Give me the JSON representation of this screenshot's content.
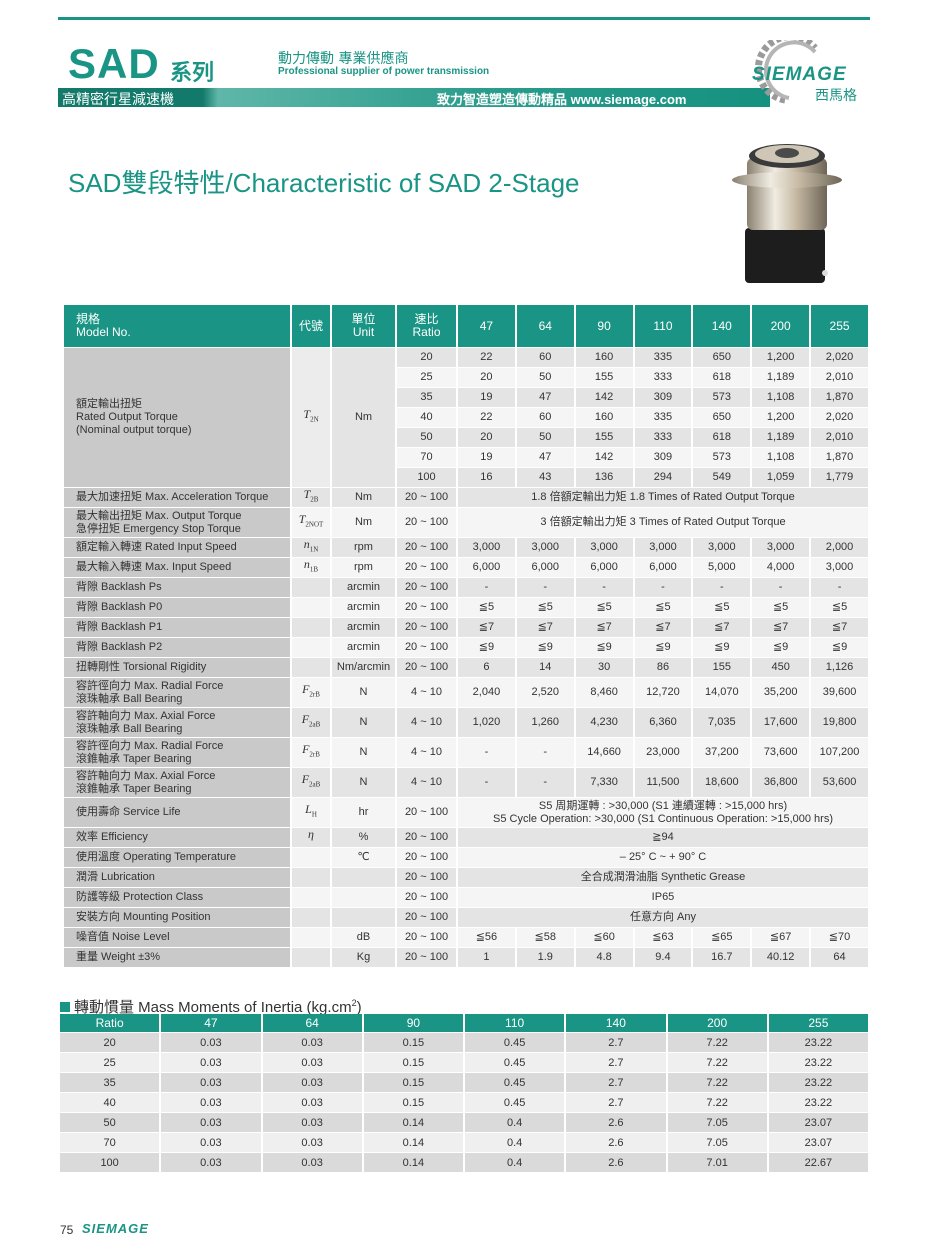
{
  "header": {
    "brand": "SAD",
    "series": "系列",
    "tagline_zh": "動力傳動 專業供應商",
    "tagline_en": "Professional supplier of power transmission",
    "band_left": "高精密行星減速機",
    "band_right": "致力智造塑造傳動精品  www.siemage.com",
    "logo_text": "SIEMAGE",
    "logo_zh": "西馬格",
    "accent_color": "#1a9585"
  },
  "title": "SAD雙段特性/Characteristic of SAD 2-Stage",
  "main_table": {
    "head": {
      "model_zh": "規格",
      "model_en": "Model No.",
      "code": "代號",
      "unit_zh": "單位",
      "unit_en": "Unit",
      "ratio_zh": "速比",
      "ratio_en": "Ratio",
      "models": [
        "47",
        "64",
        "90",
        "110",
        "140",
        "200",
        "255"
      ]
    },
    "rated_torque": {
      "label_zh": "額定輸出扭矩",
      "label_en": "Rated Output Torque",
      "label_note": "(Nominal output torque)",
      "sym": {
        "main": "T",
        "sub": "2N"
      },
      "unit": "Nm",
      "rows": [
        {
          "ratio": "20",
          "values": [
            "22",
            "60",
            "160",
            "335",
            "650",
            "1,200",
            "2,020"
          ]
        },
        {
          "ratio": "25",
          "values": [
            "20",
            "50",
            "155",
            "333",
            "618",
            "1,189",
            "2,010"
          ]
        },
        {
          "ratio": "35",
          "values": [
            "19",
            "47",
            "142",
            "309",
            "573",
            "1,108",
            "1,870"
          ]
        },
        {
          "ratio": "40",
          "values": [
            "22",
            "60",
            "160",
            "335",
            "650",
            "1,200",
            "2,020"
          ]
        },
        {
          "ratio": "50",
          "values": [
            "20",
            "50",
            "155",
            "333",
            "618",
            "1,189",
            "2,010"
          ]
        },
        {
          "ratio": "70",
          "values": [
            "19",
            "47",
            "142",
            "309",
            "573",
            "1,108",
            "1,870"
          ]
        },
        {
          "ratio": "100",
          "values": [
            "16",
            "43",
            "136",
            "294",
            "549",
            "1,059",
            "1,779"
          ]
        }
      ]
    },
    "rows": [
      {
        "label": "最大加速扭矩 Max. Acceleration Torque",
        "sym": {
          "main": "T",
          "sub": "2B"
        },
        "unit": "Nm",
        "ratio": "20 ~ 100",
        "span": "1.8 倍額定輸出力矩  1.8 Times of Rated Output Torque"
      },
      {
        "label": "最大輸出扭矩  Max. Output Torque",
        "label2": "急停扭矩  Emergency Stop Torque",
        "sym": {
          "main": "T",
          "sub": "2NOT"
        },
        "unit": "Nm",
        "ratio": "20 ~ 100",
        "span": "3 倍額定輸出力矩  3 Times of Rated Output Torque"
      },
      {
        "label": "額定輸入轉速  Rated Input Speed",
        "sym": {
          "main": "n",
          "sub": "1N"
        },
        "unit": "rpm",
        "ratio": "20 ~ 100",
        "values": [
          "3,000",
          "3,000",
          "3,000",
          "3,000",
          "3,000",
          "3,000",
          "2,000"
        ]
      },
      {
        "label": "最大輸入轉速  Max. Input Speed",
        "sym": {
          "main": "n",
          "sub": "1B"
        },
        "unit": "rpm",
        "ratio": "20 ~ 100",
        "values": [
          "6,000",
          "6,000",
          "6,000",
          "6,000",
          "5,000",
          "4,000",
          "3,000"
        ]
      },
      {
        "label": "背隙  Backlash Ps",
        "unit": "arcmin",
        "ratio": "20 ~ 100",
        "values": [
          "-",
          "-",
          "-",
          "-",
          "-",
          "-",
          "-"
        ]
      },
      {
        "label": "背隙  Backlash P0",
        "unit": "arcmin",
        "ratio": "20 ~ 100",
        "values": [
          "≦5",
          "≦5",
          "≦5",
          "≦5",
          "≦5",
          "≦5",
          "≦5"
        ]
      },
      {
        "label": "背隙  Backlash P1",
        "unit": "arcmin",
        "ratio": "20 ~ 100",
        "values": [
          "≦7",
          "≦7",
          "≦7",
          "≦7",
          "≦7",
          "≦7",
          "≦7"
        ]
      },
      {
        "label": "背隙  Backlash P2",
        "unit": "arcmin",
        "ratio": "20 ~ 100",
        "values": [
          "≦9",
          "≦9",
          "≦9",
          "≦9",
          "≦9",
          "≦9",
          "≦9"
        ]
      },
      {
        "label": "扭轉剛性  Torsional Rigidity",
        "unit": "Nm/arcmin",
        "ratio": "20 ~ 100",
        "values": [
          "6",
          "14",
          "30",
          "86",
          "155",
          "450",
          "1,126"
        ]
      },
      {
        "label": "容許徑向力  Max. Radial Force",
        "label2": "滾珠軸承  Ball Bearing",
        "sym": {
          "main": "F",
          "sub": "2rB"
        },
        "unit": "N",
        "ratio": "4 ~ 10",
        "values": [
          "2,040",
          "2,520",
          "8,460",
          "12,720",
          "14,070",
          "35,200",
          "39,600"
        ]
      },
      {
        "label": "容許軸向力  Max. Axial Force",
        "label2": "滾珠軸承  Ball Bearing",
        "sym": {
          "main": "F",
          "sub": "2aB"
        },
        "unit": "N",
        "ratio": "4 ~ 10",
        "values": [
          "1,020",
          "1,260",
          "4,230",
          "6,360",
          "7,035",
          "17,600",
          "19,800"
        ]
      },
      {
        "label": "容許徑向力  Max. Radial Force",
        "label2": "滾錐軸承  Taper Bearing",
        "sym": {
          "main": "F",
          "sub": "2rB"
        },
        "unit": "N",
        "ratio": "4 ~ 10",
        "values": [
          "-",
          "-",
          "14,660",
          "23,000",
          "37,200",
          "73,600",
          "107,200"
        ]
      },
      {
        "label": "容許軸向力  Max. Axial Force",
        "label2": "滾錐軸承  Taper Bearing",
        "sym": {
          "main": "F",
          "sub": "2aB"
        },
        "unit": "N",
        "ratio": "4 ~ 10",
        "values": [
          "-",
          "-",
          "7,330",
          "11,500",
          "18,600",
          "36,800",
          "53,600"
        ]
      },
      {
        "label": "使用壽命  Service Life",
        "sym": {
          "main": "L",
          "sub": "H"
        },
        "unit": "hr",
        "ratio": "20 ~ 100",
        "span": "S5 周期運轉 : >30,000 (S1 連續運轉 : >15,000 hrs)",
        "span2": "S5 Cycle Operation: >30,000 (S1 Continuous Operation: >15,000 hrs)"
      },
      {
        "label": "效率  Efficiency",
        "sym": {
          "main": "η",
          "sub": ""
        },
        "unit": "%",
        "ratio": "20 ~ 100",
        "span": "≧94"
      },
      {
        "label": "使用溫度  Operating Temperature",
        "unit": "℃",
        "ratio": "20 ~ 100",
        "span": "– 25° C  ~  + 90° C"
      },
      {
        "label": "潤滑  Lubrication",
        "unit": "",
        "ratio": "20 ~ 100",
        "span": "全合成潤滑油脂  Synthetic Grease"
      },
      {
        "label": "防護等級  Protection Class",
        "unit": "",
        "ratio": "20 ~ 100",
        "span": "IP65"
      },
      {
        "label": "安裝方向  Mounting Position",
        "unit": "",
        "ratio": "20 ~ 100",
        "span": "任意方向  Any"
      },
      {
        "label": "噪音值  Noise Level",
        "unit": "dB",
        "ratio": "20 ~ 100",
        "values": [
          "≦56",
          "≦58",
          "≦60",
          "≦63",
          "≦65",
          "≦67",
          "≦70"
        ]
      },
      {
        "label": "重量  Weight  ±3%",
        "unit": "Kg",
        "ratio": "20 ~ 100",
        "values": [
          "1",
          "1.9",
          "4.8",
          "9.4",
          "16.7",
          "40.12",
          "64"
        ]
      }
    ]
  },
  "inertia": {
    "title": "轉動慣量 Mass Moments of Inertia (kg.cm",
    "title_sup": "2",
    "title_end": ")",
    "headers": [
      "Ratio",
      "47",
      "64",
      "90",
      "110",
      "140",
      "200",
      "255"
    ],
    "rows": [
      [
        "20",
        "0.03",
        "0.03",
        "0.15",
        "0.45",
        "2.7",
        "7.22",
        "23.22"
      ],
      [
        "25",
        "0.03",
        "0.03",
        "0.15",
        "0.45",
        "2.7",
        "7.22",
        "23.22"
      ],
      [
        "35",
        "0.03",
        "0.03",
        "0.15",
        "0.45",
        "2.7",
        "7.22",
        "23.22"
      ],
      [
        "40",
        "0.03",
        "0.03",
        "0.15",
        "0.45",
        "2.7",
        "7.22",
        "23.22"
      ],
      [
        "50",
        "0.03",
        "0.03",
        "0.14",
        "0.4",
        "2.6",
        "7.05",
        "23.07"
      ],
      [
        "70",
        "0.03",
        "0.03",
        "0.14",
        "0.4",
        "2.6",
        "7.05",
        "23.07"
      ],
      [
        "100",
        "0.03",
        "0.03",
        "0.14",
        "0.4",
        "2.6",
        "7.01",
        "22.67"
      ]
    ]
  },
  "footer": {
    "page": "75",
    "logo_text": "SIEMAGE"
  }
}
